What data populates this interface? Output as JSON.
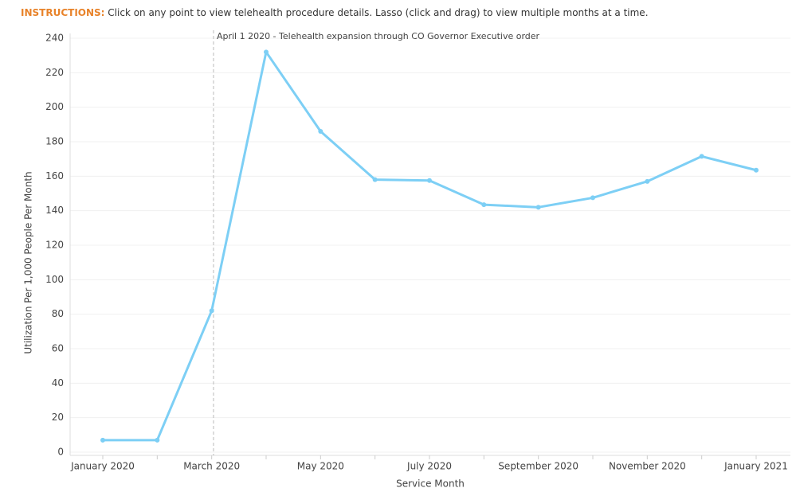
{
  "instructions": {
    "label": "INSTRUCTIONS:",
    "text": "Click on any point to view telehealth procedure details. Lasso (click and drag) to view multiple months at a time."
  },
  "chart_data": {
    "type": "line",
    "annotation": "April 1 2020 - Telehealth expansion through CO Governor Executive order",
    "x_label": "Service Month",
    "y_label": "Utilization Per 1,000 People Per Month",
    "categories": [
      "January 2020",
      null,
      "March 2020",
      null,
      "May 2020",
      null,
      "July 2020",
      null,
      "September 2020",
      null,
      "November 2020",
      null,
      "January 2021"
    ],
    "values": [
      7,
      7,
      82,
      232,
      186,
      158,
      157.5,
      143.5,
      142,
      147.5,
      157,
      171.5,
      163.5
    ],
    "color": "#7dcff5",
    "ylim": [
      0,
      240
    ],
    "yticks": [
      0,
      20,
      40,
      60,
      80,
      100,
      120,
      140,
      160,
      180,
      200,
      220,
      240
    ],
    "grid": true
  }
}
